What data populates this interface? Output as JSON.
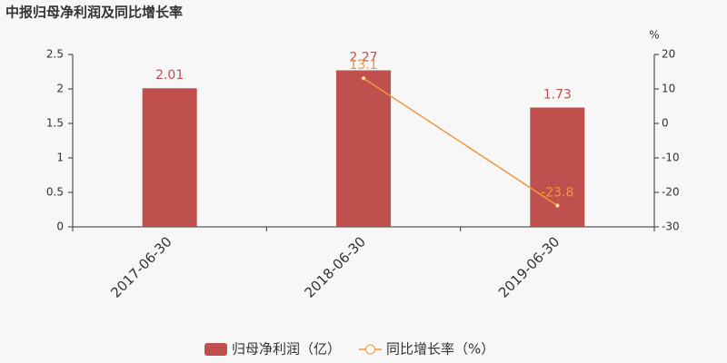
{
  "chart_data": {
    "type": "bar-line",
    "title": "中报归母净利润及同比增长率",
    "categories": [
      "2017-06-30",
      "2018-06-30",
      "2019-06-30"
    ],
    "series": [
      {
        "name": "归母净利润（亿）",
        "type": "bar",
        "color": "#c0504d",
        "values": [
          2.01,
          2.27,
          1.73
        ]
      },
      {
        "name": "同比增长率（%）",
        "type": "line",
        "axis": "y2",
        "color": "#f0973e",
        "values": [
          null,
          13.1,
          -23.8
        ]
      }
    ],
    "ylim": [
      0,
      2.5
    ],
    "yticks": [
      0,
      0.5,
      1,
      1.5,
      2,
      2.5
    ],
    "y2label": "%",
    "y2lim": [
      -30,
      20
    ],
    "y2ticks": [
      -30,
      -20,
      -10,
      0,
      10,
      20
    ],
    "grid": false
  }
}
